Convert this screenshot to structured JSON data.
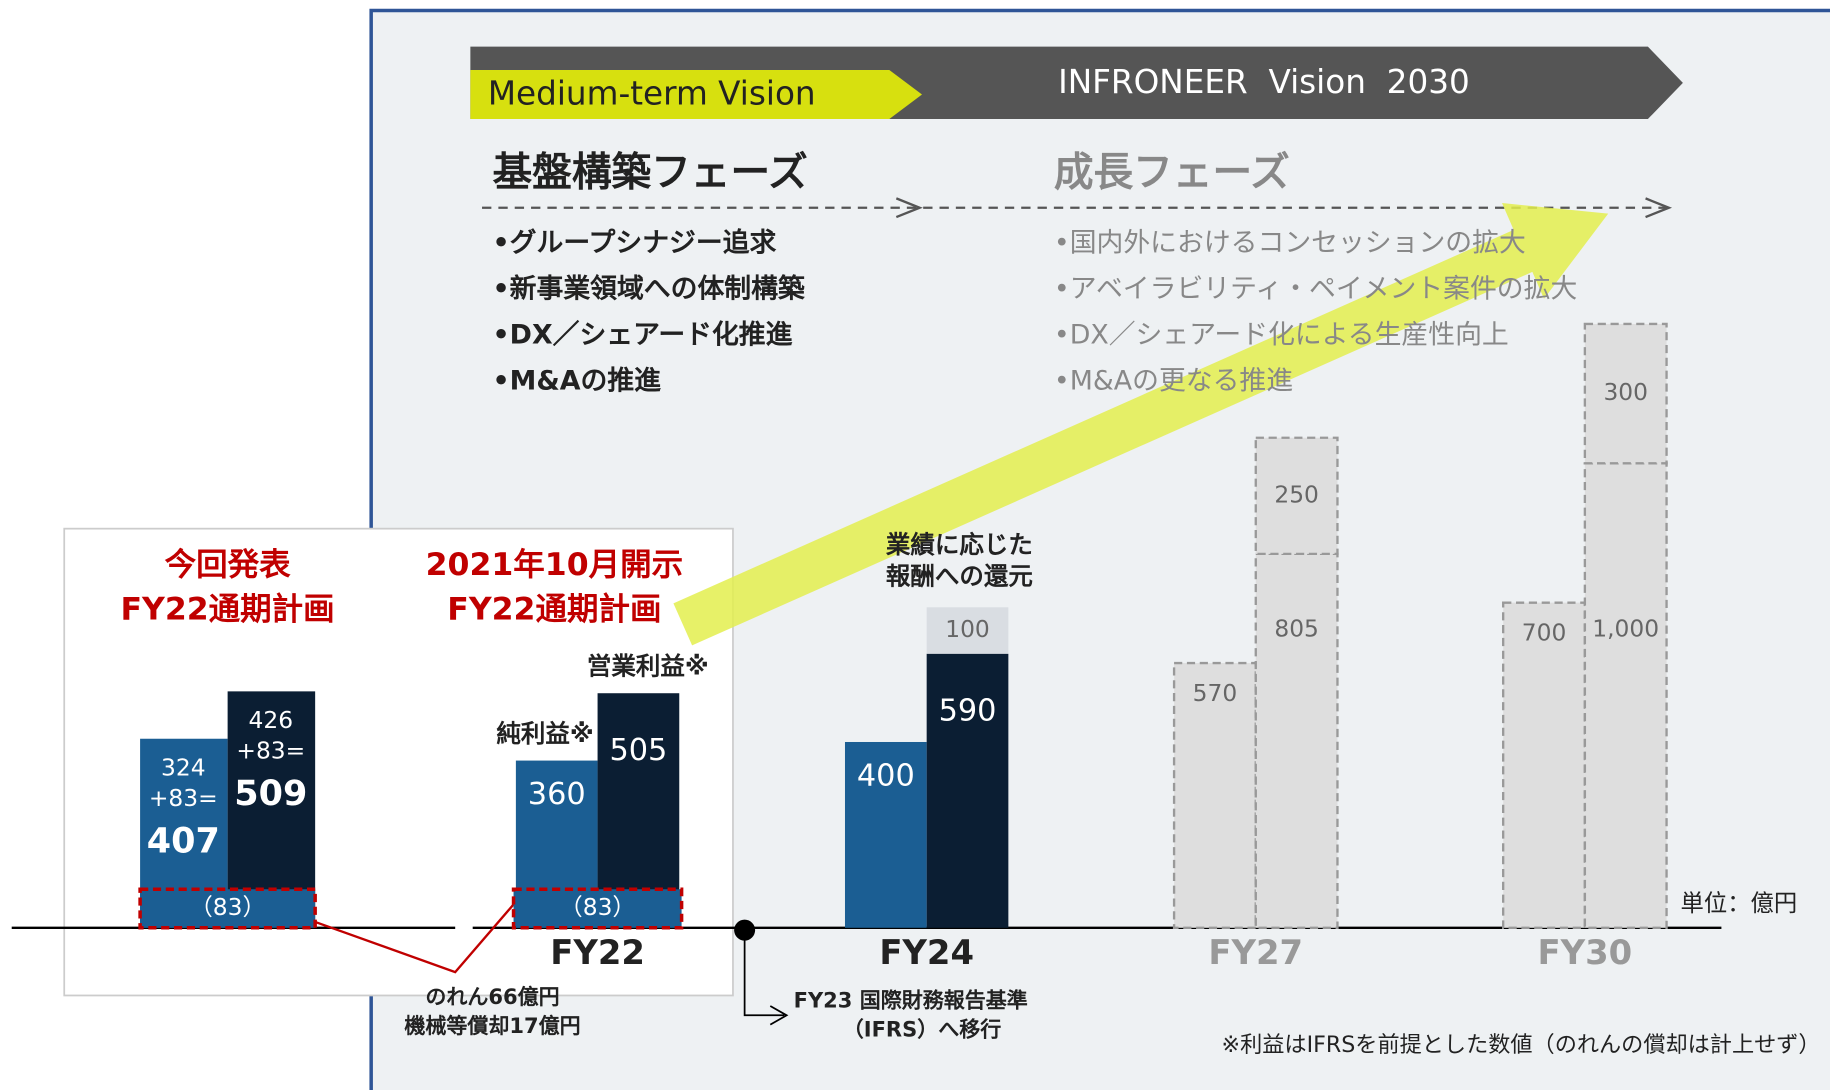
{
  "vision": {
    "current": "Medium-term Vision",
    "target": "INFRONEER  Vision  2030"
  },
  "phases": [
    {
      "title": "基盤構築フェーズ",
      "items": [
        "•グループシナジー追求",
        "•新事業領域への体制構築",
        "•DX／シェアード化推進",
        "•M&Aの推進"
      ]
    },
    {
      "title": "成長フェーズ",
      "items": [
        "•国内外におけるコンセッションの拡大",
        "•アベイラビリティ・ペイメント案件の拡大",
        "•DX／シェアード化による生産性向上",
        "•M&Aの更なる推進"
      ]
    }
  ],
  "chart_data": {
    "type": "bar",
    "unit": "単位：億円",
    "latest_plan": {
      "title": [
        "今回発表",
        "FY22通期計画"
      ],
      "values": [
        407,
        509
      ],
      "value_labels": [
        [
          "324",
          "+83=",
          "407"
        ],
        [
          "426",
          "+83=",
          "509"
        ]
      ],
      "base": 83,
      "base_label": "（83）"
    },
    "initial_plan_title": [
      "2021年10月開示",
      "FY22通期計画"
    ],
    "categories": [
      "FY22",
      "FY24",
      "FY27",
      "FY30"
    ],
    "projected": [
      false,
      false,
      true,
      true
    ],
    "projected_color": "#dedede",
    "series": [
      {
        "name": "純利益※",
        "color": "#1b5e93",
        "values": [
          360,
          400,
          570,
          700
        ]
      },
      {
        "name": "営業利益※",
        "color": "#0b1e33",
        "values": [
          505,
          590,
          805,
          1000
        ],
        "value_labels": [
          "505",
          "590",
          "805",
          "1,000"
        ]
      },
      {
        "color": "#d9dde2",
        "values": [
          null,
          100,
          250,
          300
        ]
      }
    ],
    "fy22_base": 83,
    "fy22_base_label": "（83）",
    "annotations": {
      "reward": [
        "業績に応じた",
        "報酬への還元"
      ],
      "amortization": [
        "のれん66億円",
        "機械等償却17億円"
      ],
      "ifrs": [
        "FY23 国際財務報告基準",
        "（IFRS）へ移行"
      ],
      "note": "※利益はIFRSを前提とした数値（のれんの償却は計上せず）"
    }
  }
}
